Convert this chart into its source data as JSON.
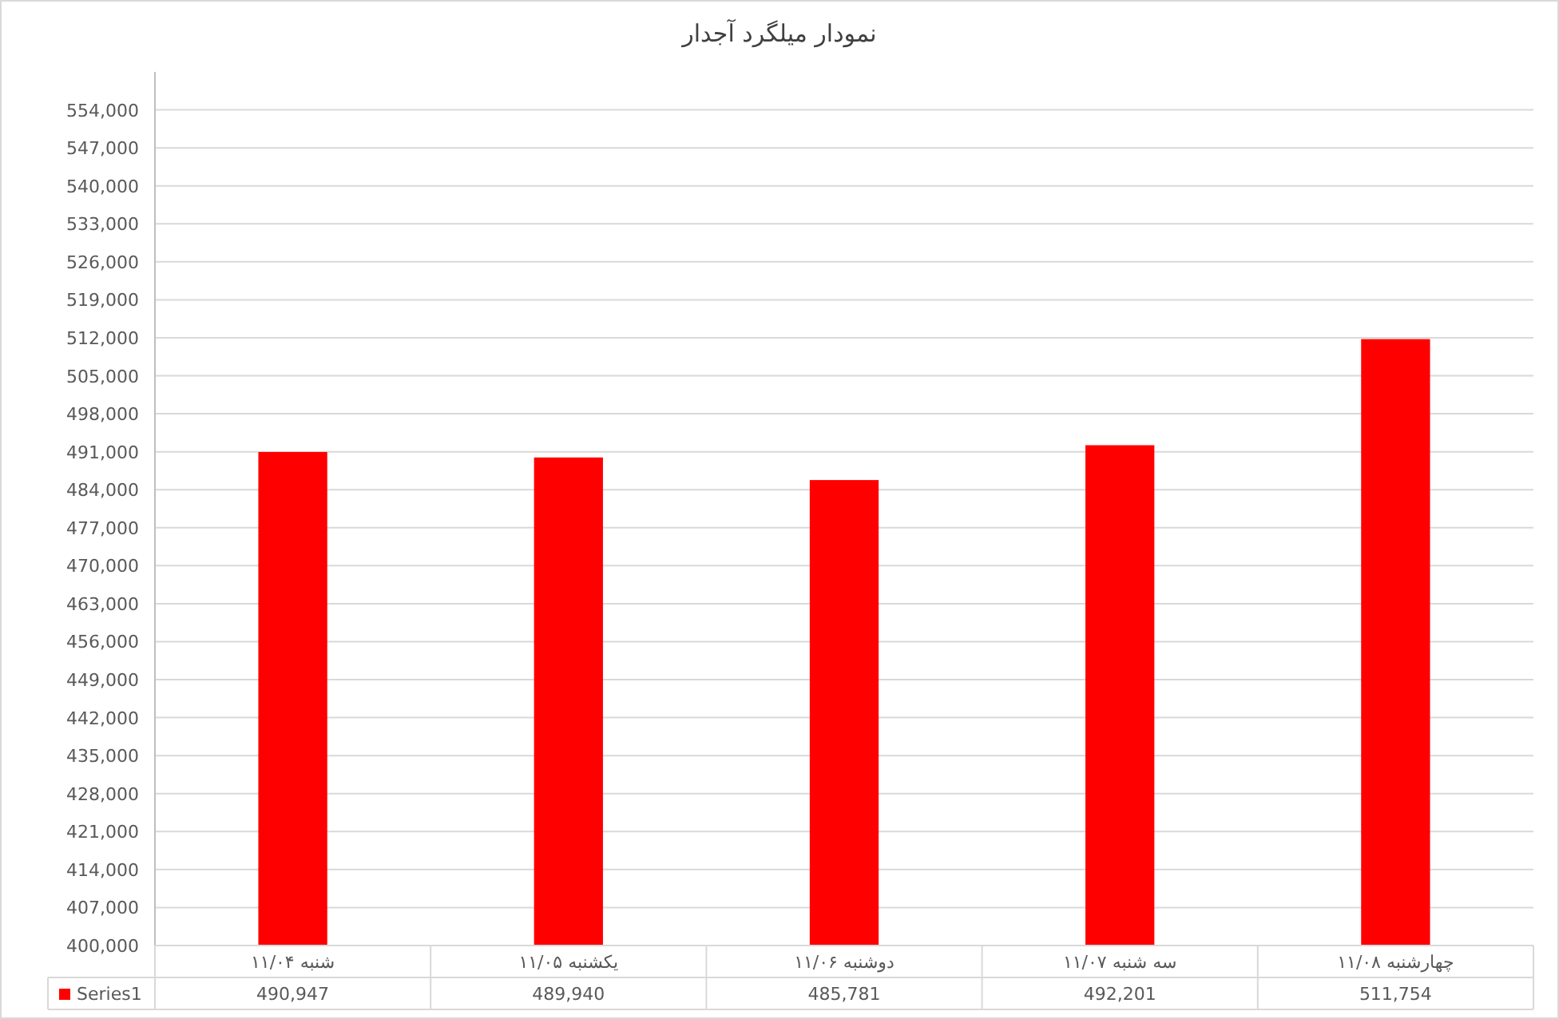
{
  "chart_data": {
    "type": "bar",
    "title": "نمودار میلگرد آجدار",
    "categories": [
      "شنبه ۱۱/۰۴",
      "یکشنبه ۱۱/۰۵",
      "دوشنبه ۱۱/۰۶",
      "سه شنبه ۱۱/۰۷",
      "چهارشنبه ۱۱/۰۸"
    ],
    "series": [
      {
        "name": "Series1",
        "color": "#ff0000",
        "values": [
          490947,
          489940,
          485781,
          492201,
          511754
        ],
        "value_labels": [
          "490,947",
          "489,940",
          "485,781",
          "492,201",
          "511,754"
        ]
      }
    ],
    "ylim": [
      400000,
      561000
    ],
    "yticks": [
      {
        "value": 400000,
        "label": "400,000"
      },
      {
        "value": 407000,
        "label": "407,000"
      },
      {
        "value": 414000,
        "label": "414,000"
      },
      {
        "value": 421000,
        "label": "421,000"
      },
      {
        "value": 428000,
        "label": "428,000"
      },
      {
        "value": 435000,
        "label": "435,000"
      },
      {
        "value": 442000,
        "label": "442,000"
      },
      {
        "value": 449000,
        "label": "449,000"
      },
      {
        "value": 456000,
        "label": "456,000"
      },
      {
        "value": 463000,
        "label": "463,000"
      },
      {
        "value": 470000,
        "label": "470,000"
      },
      {
        "value": 477000,
        "label": "477,000"
      },
      {
        "value": 484000,
        "label": "484,000"
      },
      {
        "value": 491000,
        "label": "491,000"
      },
      {
        "value": 498000,
        "label": "498,000"
      },
      {
        "value": 505000,
        "label": "505,000"
      },
      {
        "value": 512000,
        "label": "512,000"
      },
      {
        "value": 519000,
        "label": "519,000"
      },
      {
        "value": 526000,
        "label": "526,000"
      },
      {
        "value": 533000,
        "label": "533,000"
      },
      {
        "value": 540000,
        "label": "540,000"
      },
      {
        "value": 547000,
        "label": "547,000"
      },
      {
        "value": 554000,
        "label": "554,000"
      }
    ],
    "grid": "y",
    "legend": "bottom"
  }
}
